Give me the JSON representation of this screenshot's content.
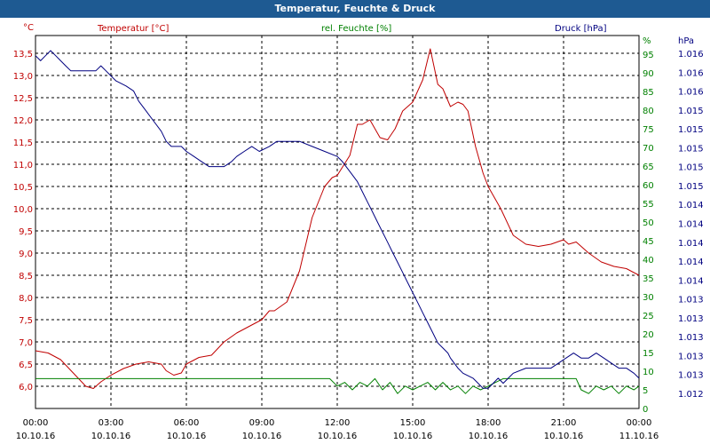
{
  "window": {
    "title": "Temperatur, Feuchte & Druck"
  },
  "colors": {
    "temperature": "#c00000",
    "humidity": "#008000",
    "pressure": "#000080",
    "grid": "#000000",
    "background": "#ffffff"
  },
  "chart_data": {
    "type": "line",
    "title": "Temperatur, Feuchte & Druck",
    "x_tick_times": [
      "00:00",
      "03:00",
      "06:00",
      "09:00",
      "12:00",
      "15:00",
      "18:00",
      "21:00",
      "00:00"
    ],
    "x_tick_dates": [
      "10.10.16",
      "10.10.16",
      "10.10.16",
      "10.10.16",
      "10.10.16",
      "10.10.16",
      "10.10.16",
      "10.10.16",
      "11.10.16"
    ],
    "x_range": [
      0,
      24
    ],
    "axes": {
      "temperature": {
        "label": "Temperatur [°C]",
        "unit": "°C",
        "range": [
          5.5,
          13.9
        ],
        "ticks": [
          "13,5",
          "13,0",
          "12,5",
          "12,0",
          "11,5",
          "11,0",
          "10,5",
          "10,0",
          "9,5",
          "9,0",
          "8,5",
          "8,0",
          "7,5",
          "7,0",
          "6,5",
          "6,0"
        ]
      },
      "humidity": {
        "label": "rel. Feuchte [%]",
        "unit": "%",
        "range": [
          0,
          100
        ],
        "ticks": [
          "95",
          "90",
          "85",
          "80",
          "75",
          "70",
          "65",
          "60",
          "55",
          "50",
          "45",
          "40",
          "35",
          "30",
          "25",
          "20",
          "15",
          "10",
          "5",
          "0"
        ]
      },
      "pressure": {
        "label": "Druck [hPa]",
        "unit": "hPa",
        "range": [
          1012.6,
          1016.3
        ],
        "ticks": [
          "1.016",
          "1.016",
          "1.016",
          "1.015",
          "1.015",
          "1.015",
          "1.015",
          "1.015",
          "1.014",
          "1.014",
          "1.014",
          "1.014",
          "1.014",
          "1.013",
          "1.013",
          "1.013",
          "1.013",
          "1.013",
          "1.012"
        ]
      }
    },
    "series": [
      {
        "name": "Temperatur",
        "axis": "temperature",
        "x": [
          0,
          0.5,
          1,
          1.5,
          2,
          2.3,
          2.6,
          3,
          3.5,
          4,
          4.5,
          5,
          5.2,
          5.5,
          5.8,
          6,
          6.5,
          7,
          7.5,
          8,
          8.5,
          9,
          9.3,
          9.5,
          10,
          10.5,
          11,
          11.5,
          11.8,
          12,
          12.5,
          12.8,
          13,
          13.3,
          13.7,
          14,
          14.3,
          14.6,
          15,
          15.4,
          15.7,
          16,
          16.2,
          16.5,
          16.8,
          17,
          17.2,
          17.5,
          17.8,
          18,
          18.5,
          19,
          19.5,
          20,
          20.5,
          21,
          21.2,
          21.5,
          22,
          22.5,
          23,
          23.5,
          24
        ],
        "values": [
          6.8,
          6.75,
          6.6,
          6.3,
          6.0,
          5.95,
          6.1,
          6.25,
          6.4,
          6.5,
          6.55,
          6.5,
          6.35,
          6.25,
          6.3,
          6.5,
          6.65,
          6.7,
          7.0,
          7.2,
          7.35,
          7.5,
          7.7,
          7.7,
          7.9,
          8.6,
          9.8,
          10.5,
          10.7,
          10.75,
          11.2,
          11.9,
          11.9,
          12.0,
          11.6,
          11.55,
          11.8,
          12.2,
          12.4,
          12.9,
          13.6,
          12.8,
          12.7,
          12.3,
          12.4,
          12.35,
          12.2,
          11.4,
          10.8,
          10.5,
          10.0,
          9.4,
          9.2,
          9.15,
          9.2,
          9.3,
          9.2,
          9.25,
          9.0,
          8.8,
          8.7,
          8.65,
          8.5
        ]
      },
      {
        "name": "rel. Feuchte",
        "axis": "humidity",
        "x": [
          0,
          3,
          6,
          9,
          11.7,
          12,
          12.3,
          12.6,
          12.9,
          13.2,
          13.5,
          13.8,
          14.1,
          14.4,
          14.7,
          15,
          15.3,
          15.6,
          15.9,
          16.2,
          16.5,
          16.8,
          17.1,
          17.4,
          17.7,
          18,
          18.3,
          18.6,
          19,
          20,
          21,
          21.5,
          21.7,
          22,
          22.3,
          22.6,
          22.9,
          23.2,
          23.5,
          23.8,
          24
        ],
        "values": [
          8,
          8,
          8,
          8,
          8,
          6,
          7,
          5,
          7,
          6,
          8,
          5,
          7,
          4,
          6,
          5,
          6,
          7,
          5,
          7,
          5,
          6,
          4,
          6,
          5,
          6,
          7,
          8,
          8,
          8,
          8,
          8,
          5,
          4,
          6,
          5,
          6,
          4,
          6,
          5,
          6
        ]
      },
      {
        "name": "Druck",
        "axis": "pressure",
        "x": [
          0,
          0.2,
          0.4,
          0.6,
          0.8,
          1,
          1.2,
          1.4,
          2.4,
          2.6,
          2.8,
          3,
          3.2,
          3.6,
          3.9,
          4.1,
          4.4,
          4.7,
          5,
          5.2,
          5.4,
          5.8,
          6,
          6.3,
          6.6,
          6.9,
          7.5,
          7.8,
          8,
          8.3,
          8.6,
          8.9,
          9.3,
          9.6,
          10,
          10.5,
          11,
          11.5,
          12,
          12.2,
          12.5,
          12.8,
          13,
          13.2,
          13.4,
          13.6,
          13.8,
          14,
          14.2,
          14.4,
          14.6,
          14.8,
          15,
          15.2,
          15.4,
          15.6,
          15.8,
          16,
          16.2,
          16.4,
          16.5,
          16.8,
          17,
          17.4,
          17.6,
          17.8,
          18,
          18.2,
          18.4,
          18.6,
          18.8,
          19,
          19.5,
          20,
          20.2,
          20.5,
          20.8,
          21.1,
          21.4,
          21.7,
          22,
          22.3,
          22.6,
          22.9,
          23.2,
          23.5,
          23.8,
          24
        ],
        "values": [
          1016.1,
          1016.05,
          1016.1,
          1016.15,
          1016.1,
          1016.05,
          1016.0,
          1015.95,
          1015.95,
          1016.0,
          1015.95,
          1015.9,
          1015.85,
          1015.8,
          1015.75,
          1015.65,
          1015.55,
          1015.45,
          1015.35,
          1015.25,
          1015.2,
          1015.2,
          1015.15,
          1015.1,
          1015.05,
          1015.0,
          1015.0,
          1015.05,
          1015.1,
          1015.15,
          1015.2,
          1015.15,
          1015.2,
          1015.25,
          1015.25,
          1015.25,
          1015.2,
          1015.15,
          1015.1,
          1015.05,
          1014.95,
          1014.85,
          1014.75,
          1014.65,
          1014.55,
          1014.45,
          1014.35,
          1014.25,
          1014.15,
          1014.05,
          1013.95,
          1013.85,
          1013.75,
          1013.65,
          1013.55,
          1013.45,
          1013.35,
          1013.25,
          1013.2,
          1013.15,
          1013.1,
          1013.0,
          1012.95,
          1012.9,
          1012.85,
          1012.8,
          1012.8,
          1012.85,
          1012.9,
          1012.85,
          1012.9,
          1012.95,
          1013.0,
          1013.0,
          1013.0,
          1013.0,
          1013.05,
          1013.1,
          1013.15,
          1013.1,
          1013.1,
          1013.15,
          1013.1,
          1013.05,
          1013.0,
          1013.0,
          1012.95,
          1012.9
        ]
      }
    ]
  }
}
